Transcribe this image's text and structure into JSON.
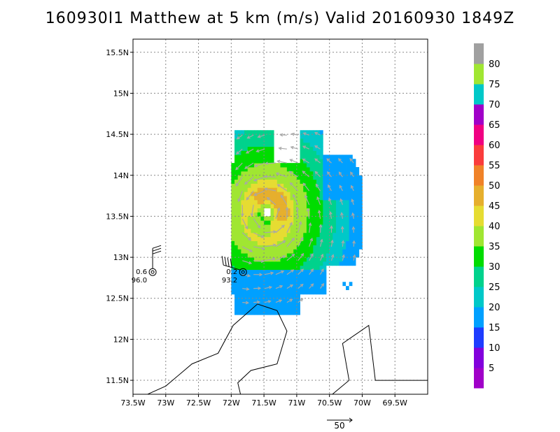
{
  "title": "160930I1 Matthew at 5 km (m/s) Valid 20160930  1849Z",
  "chart_data": {
    "type": "heatmap",
    "title": "160930I1 Matthew at 5 km (m/s) Valid 20160930  1849Z",
    "xlim": [
      -73.5,
      -69.0
    ],
    "ylim": [
      11.33,
      15.66
    ],
    "grid": true,
    "x_tick_labels": [
      "73.5W",
      "73W",
      "72.5W",
      "72W",
      "71.5W",
      "71W",
      "70.5W",
      "70W",
      "69.5W"
    ],
    "x_tick_values": [
      -73.5,
      -73.0,
      -72.5,
      -72.0,
      -71.5,
      -71.0,
      -70.5,
      -70.0,
      -69.5
    ],
    "y_tick_labels": [
      "11.5N",
      "12N",
      "12.5N",
      "13N",
      "13.5N",
      "14N",
      "14.5N",
      "15N",
      "15.5N"
    ],
    "y_tick_values": [
      11.5,
      12.0,
      12.5,
      13.0,
      13.5,
      14.0,
      14.5,
      15.0,
      15.5
    ],
    "colorbar": {
      "labels": [
        "5",
        "10",
        "15",
        "20",
        "25",
        "30",
        "35",
        "40",
        "45",
        "50",
        "55",
        "60",
        "65",
        "70",
        "75",
        "80"
      ],
      "colors": [
        "#a000c8",
        "#8200dc",
        "#1e3cff",
        "#00a0ff",
        "#00c8c8",
        "#00d28c",
        "#00dc00",
        "#a0e632",
        "#e6dc32",
        "#e6af2d",
        "#f08228",
        "#fa3c3c",
        "#f00082",
        "#a000c8",
        "#00c8c8",
        "#a0e632",
        "#a0a0a0"
      ]
    },
    "storm_center": {
      "lon": -71.45,
      "lat": 13.55
    },
    "stations": [
      {
        "lon": -73.2,
        "lat": 12.82,
        "value1": "0.6",
        "value2": "96.0"
      },
      {
        "lon": -71.82,
        "lat": 12.82,
        "value1": "0.2",
        "value2": "93.2"
      }
    ],
    "reference_vector": {
      "label": "50"
    }
  }
}
